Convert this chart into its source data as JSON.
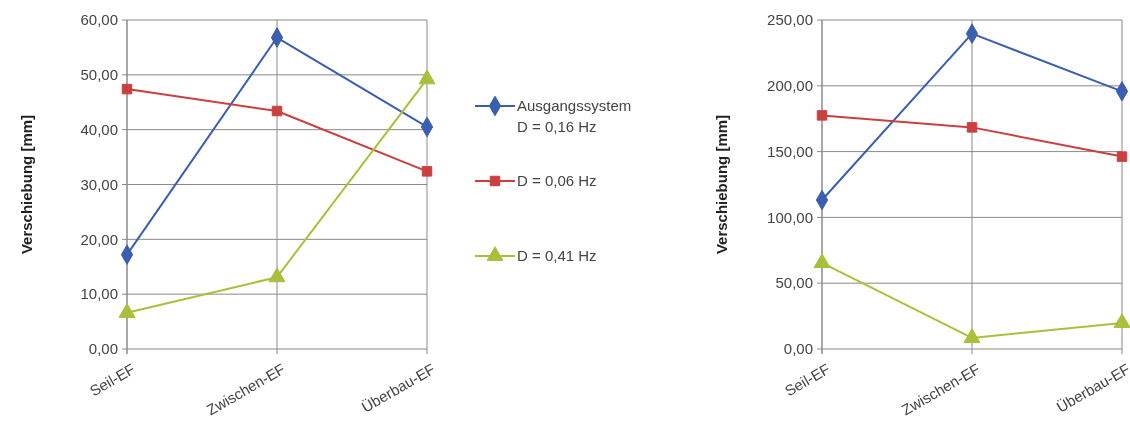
{
  "chart_data": [
    {
      "type": "line",
      "ylabel": "Verschiebung [mm]",
      "categories": [
        "Seil-EF",
        "Zwischen-EF",
        "Überbau-EF"
      ],
      "ylim": [
        0,
        60
      ],
      "yticks": [
        {
          "value": 0,
          "label": "0,00"
        },
        {
          "value": 10,
          "label": "10,00"
        },
        {
          "value": 20,
          "label": "20,00"
        },
        {
          "value": 30,
          "label": "30,00"
        },
        {
          "value": 40,
          "label": "40,00"
        },
        {
          "value": 50,
          "label": "50,00"
        },
        {
          "value": 60,
          "label": "60,00"
        }
      ],
      "grid": true,
      "legend": "right",
      "series": [
        {
          "name": "Ausgangssystem D = 0,16 Hz",
          "color": "#3a5fb0",
          "marker": "diamond",
          "values": [
            17.2,
            56.8,
            40.5
          ]
        },
        {
          "name": "D = 0,06 Hz",
          "color": "#c9403f",
          "marker": "square",
          "values": [
            47.4,
            43.4,
            32.4
          ]
        },
        {
          "name": "D = 0,41 Hz",
          "color": "#a8c03a",
          "marker": "triangle",
          "values": [
            6.6,
            13.1,
            49.2
          ]
        }
      ]
    },
    {
      "type": "line",
      "ylabel": "Verschiebung [mm]",
      "categories": [
        "Seil-EF",
        "Zwischen-EF",
        "Überbau-EF"
      ],
      "ylim": [
        0,
        250
      ],
      "yticks": [
        {
          "value": 0,
          "label": "0,00"
        },
        {
          "value": 50,
          "label": "50,00"
        },
        {
          "value": 100,
          "label": "100,00"
        },
        {
          "value": 150,
          "label": "150,00"
        },
        {
          "value": 200,
          "label": "200,00"
        },
        {
          "value": 250,
          "label": "250,00"
        }
      ],
      "grid": true,
      "series": [
        {
          "color": "#3a5fb0",
          "marker": "diamond",
          "values": [
            113.2,
            239.6,
            195.8
          ]
        },
        {
          "color": "#c9403f",
          "marker": "square",
          "values": [
            177.5,
            168.4,
            146.2
          ]
        },
        {
          "color": "#a8c03a",
          "marker": "triangle",
          "values": [
            65.4,
            8.4,
            19.8
          ]
        }
      ]
    }
  ]
}
